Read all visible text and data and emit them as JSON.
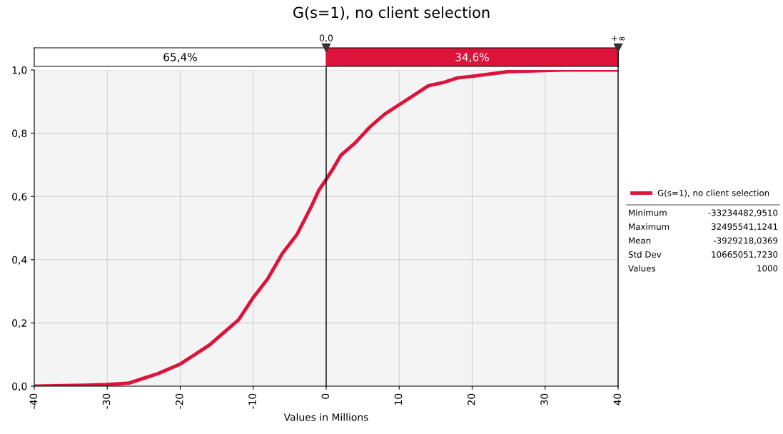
{
  "chart_data": {
    "type": "line",
    "title": "G(s=1), no client selection",
    "xlabel": "Values in Millions",
    "x": [
      -40,
      -33,
      -30,
      -27,
      -25,
      -23,
      -20,
      -18,
      -16,
      -14,
      -12,
      -10,
      -8,
      -6,
      -4,
      -2,
      -1,
      0,
      1,
      2,
      4,
      6,
      8,
      10,
      12,
      14,
      16,
      18,
      20,
      25,
      32.5,
      40
    ],
    "series": [
      {
        "name": "G(s=1), no client selection",
        "color": "#dc143c",
        "values": [
          0,
          0.003,
          0.005,
          0.01,
          0.025,
          0.04,
          0.07,
          0.1,
          0.13,
          0.17,
          0.21,
          0.28,
          0.34,
          0.42,
          0.48,
          0.57,
          0.62,
          0.654,
          0.69,
          0.73,
          0.77,
          0.82,
          0.86,
          0.89,
          0.92,
          0.95,
          0.96,
          0.975,
          0.98,
          0.995,
          1.0,
          1.0
        ]
      }
    ],
    "xlim": [
      -40,
      40
    ],
    "xticks": [
      -40,
      -30,
      -20,
      -10,
      0,
      10,
      20,
      30,
      40
    ],
    "ylim": [
      0,
      1
    ],
    "yticks": [
      {
        "value": 0,
        "label": "0,0"
      },
      {
        "value": 0.2,
        "label": "0,2"
      },
      {
        "value": 0.4,
        "label": "0,4"
      },
      {
        "value": 0.6,
        "label": "0,6"
      },
      {
        "value": 0.8,
        "label": "0,8"
      },
      {
        "value": 1.0,
        "label": "1,0"
      }
    ],
    "ref_lines": [
      {
        "axis": "x",
        "value": 0,
        "label": "0,0",
        "color": "#000000"
      },
      {
        "axis": "x",
        "value": 40,
        "label": "+∞",
        "color": "#000000"
      }
    ],
    "annotations": [
      "65,4%",
      "34,6%",
      "Minimum",
      "-33234482,9510",
      "Maximum",
      "32495541,1241",
      "Mean",
      "-3929218,0369",
      "Std Dev",
      "10665051,7230",
      "Values",
      "1000"
    ],
    "grid": true,
    "legend": "right",
    "marker": "none",
    "line_style": "solid"
  }
}
